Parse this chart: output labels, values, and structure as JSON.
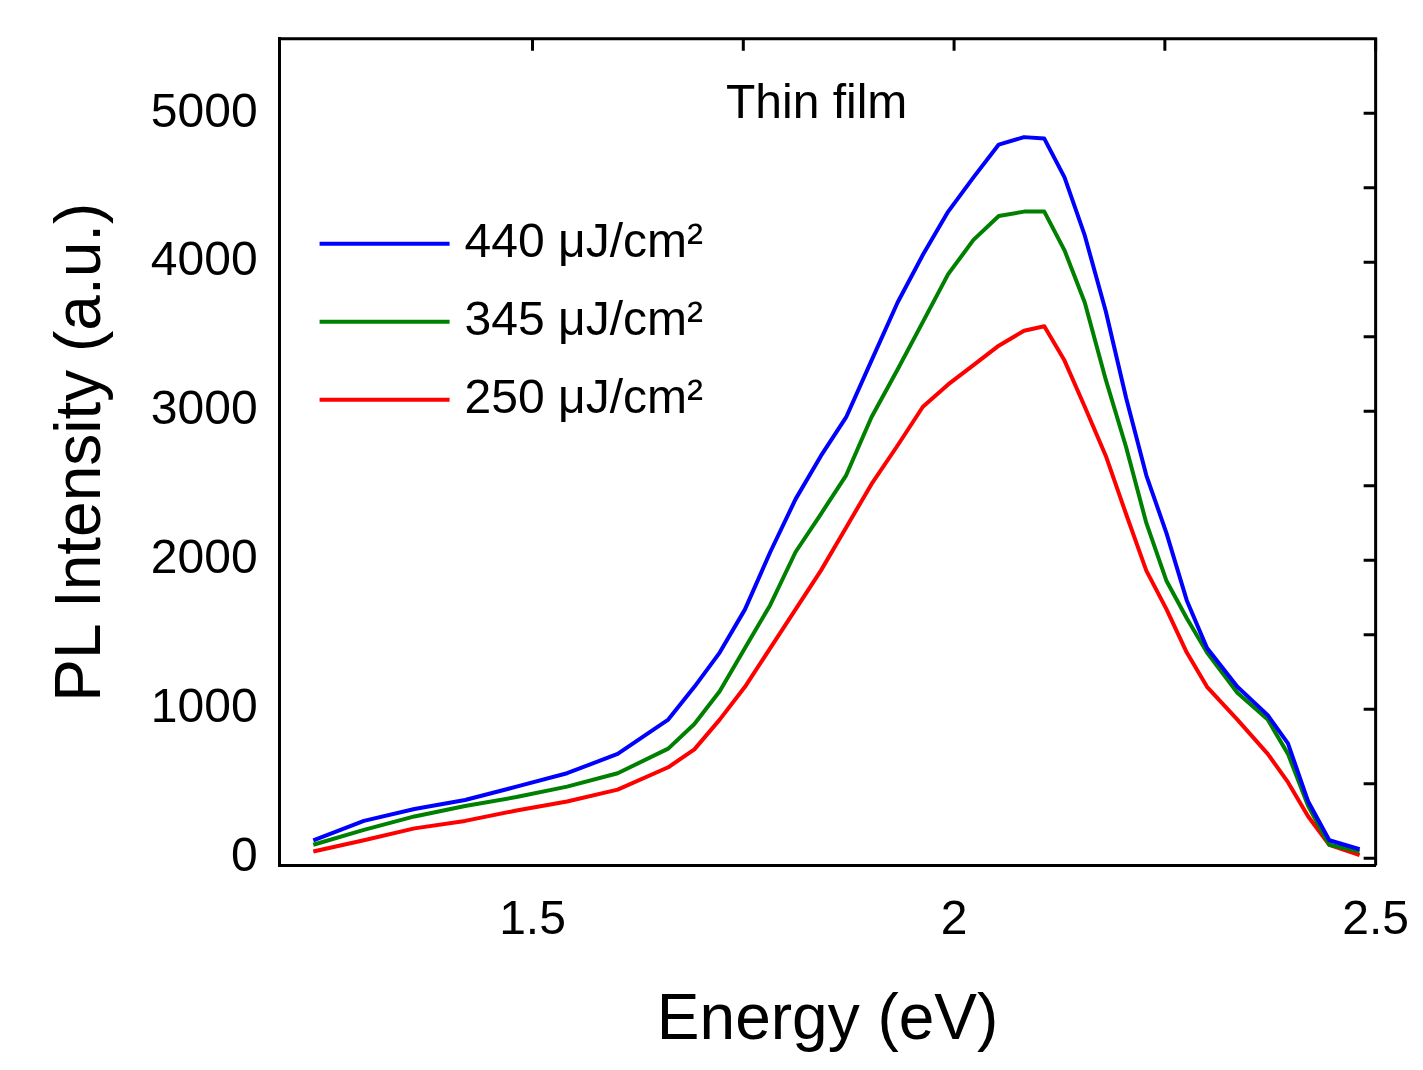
{
  "chart_data": {
    "type": "line",
    "xlabel": "Energy (eV)",
    "ylabel": "PL Intensity (a.u.)",
    "annotations": [
      "Thin film"
    ],
    "xlim": [
      1.2,
      2.5
    ],
    "xticks": [
      1.5,
      {
        "value": 1.75,
        "label": null
      },
      2,
      {
        "value": 2.25,
        "label": null
      },
      2.5
    ],
    "ylim": [
      -50,
      5500
    ],
    "yticks": [
      0,
      {
        "value": 500,
        "label": null
      },
      1000,
      {
        "value": 1500,
        "label": null
      },
      2000,
      {
        "value": 2500,
        "label": null
      },
      3000,
      {
        "value": 3500,
        "label": null
      },
      4000,
      {
        "value": 4500,
        "label": null
      },
      5000
    ],
    "grid": false,
    "legend": "top left",
    "marker": "none",
    "line_style": "solid",
    "x": [
      1.24,
      1.3,
      1.36,
      1.42,
      1.481,
      1.541,
      1.601,
      1.661,
      1.692,
      1.722,
      1.752,
      1.782,
      1.812,
      1.842,
      1.872,
      1.902,
      1.933,
      1.963,
      1.993,
      2.023,
      2.053,
      2.083,
      2.107,
      2.131,
      2.155,
      2.18,
      2.204,
      2.228,
      2.252,
      2.276,
      2.3,
      2.336,
      2.372,
      2.396,
      2.42,
      2.445,
      2.481
    ],
    "series": [
      {
        "name": "440 μJ/cm²",
        "color": "#0000ff",
        "values": [
          120,
          250,
          330,
          390,
          480,
          570,
          700,
          930,
          1150,
          1380,
          1670,
          2055,
          2410,
          2700,
          2960,
          3340,
          3730,
          4050,
          4340,
          4570,
          4790,
          4840,
          4830,
          4570,
          4180,
          3670,
          3090,
          2570,
          2180,
          1730,
          1410,
          1150,
          960,
          770,
          380,
          120,
          60
        ]
      },
      {
        "name": "345 μJ/cm²",
        "color": "#008000",
        "values": [
          90,
          190,
          280,
          350,
          410,
          480,
          570,
          735,
          900,
          1120,
          1410,
          1700,
          2055,
          2310,
          2570,
          2960,
          3280,
          3600,
          3920,
          4150,
          4310,
          4340,
          4340,
          4080,
          3730,
          3210,
          2760,
          2250,
          1860,
          1610,
          1380,
          1110,
          930,
          700,
          350,
          90,
          45
        ]
      },
      {
        "name": "250 μJ/cm²",
        "color": "#ff0000",
        "values": [
          45,
          120,
          200,
          250,
          320,
          380,
          460,
          610,
          730,
          930,
          1150,
          1410,
          1670,
          1930,
          2220,
          2510,
          2770,
          3030,
          3180,
          3310,
          3440,
          3540,
          3570,
          3340,
          3030,
          2700,
          2310,
          1930,
          1670,
          1380,
          1150,
          930,
          700,
          510,
          280,
          90,
          20
        ]
      }
    ]
  }
}
